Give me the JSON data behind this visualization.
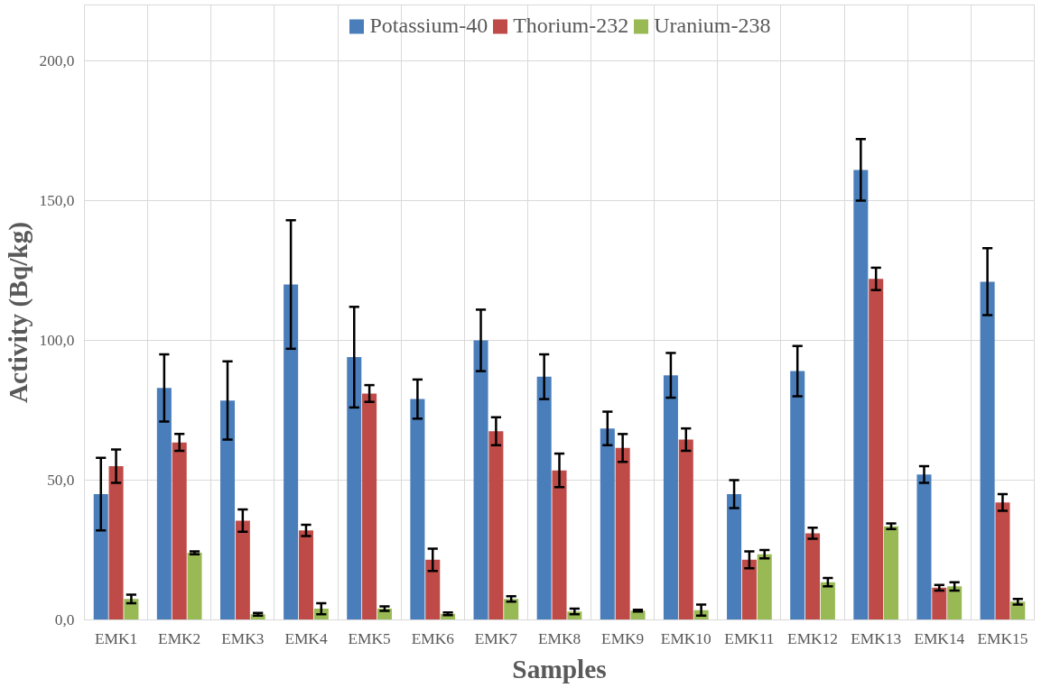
{
  "chart_data": {
    "type": "bar",
    "xlabel": "Samples",
    "ylabel": "Activity (Bq/kg)",
    "categories": [
      "EMK1",
      "EMK2",
      "EMK3",
      "EMK4",
      "EMK5",
      "EMK6",
      "EMK7",
      "EMK8",
      "EMK9",
      "EMK10",
      "EMK11",
      "EMK12",
      "EMK13",
      "EMK14",
      "EMK15"
    ],
    "series": [
      {
        "name": "Potassium-40",
        "color": "#4a7ebb",
        "values": [
          45,
          83,
          78.5,
          120,
          94,
          79,
          100,
          87,
          68.5,
          87.5,
          45,
          89,
          161,
          52,
          121
        ],
        "errors": [
          13,
          12,
          14,
          23,
          18,
          7,
          11,
          8,
          6,
          8,
          5,
          9,
          11,
          3,
          12
        ]
      },
      {
        "name": "Thorium-232",
        "color": "#be4b48",
        "values": [
          55,
          63.5,
          35.5,
          32,
          81,
          21.5,
          67.5,
          53.5,
          61.5,
          64.5,
          21.5,
          31,
          122,
          11.5,
          42
        ],
        "errors": [
          6,
          3,
          4,
          2,
          3,
          4,
          5,
          6,
          5,
          4,
          3,
          2,
          4,
          1,
          3
        ]
      },
      {
        "name": "Uranium-238",
        "color": "#98b954",
        "values": [
          7.5,
          24,
          2,
          4,
          4,
          2.2,
          7.5,
          3,
          3.3,
          3.5,
          23.5,
          13.5,
          33.5,
          12,
          6.5
        ],
        "errors": [
          1.5,
          0.5,
          0.5,
          2,
          0.8,
          0.5,
          1,
          1,
          0.3,
          2,
          1.5,
          1.5,
          1,
          1.5,
          1
        ]
      }
    ],
    "ylim": [
      0,
      220
    ],
    "yticks": [
      {
        "value": 0,
        "label": "0,0"
      },
      {
        "value": 50,
        "label": "50,0"
      },
      {
        "value": 100,
        "label": "100,0"
      },
      {
        "value": 150,
        "label": "150,0"
      },
      {
        "value": 200,
        "label": "200,0"
      }
    ],
    "grid": true,
    "legend": "top"
  }
}
